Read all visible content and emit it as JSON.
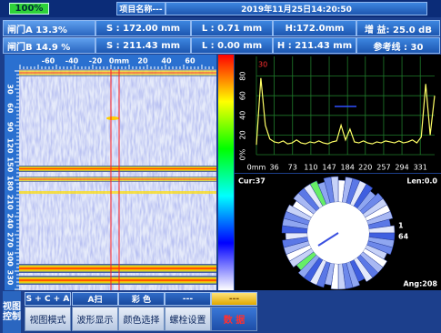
{
  "status_bar": {
    "battery": "100%",
    "project": "项目名称---",
    "datetime": "2019年11月25日14:20:50"
  },
  "gate_a": {
    "label": "闸门A 13.3%",
    "s": "S : 172.00 mm",
    "l": "L : 0.71 mm",
    "h": "H:172.0mm",
    "gain": "增 益:  25.0 dB"
  },
  "gate_b": {
    "label": "闸门B 14.9 %",
    "s": "S : 211.43 mm",
    "l": "L : 0.00 mm",
    "h": "H : 211.43 mm",
    "ref": "参考线 : 30"
  },
  "bscan": {
    "top_ruler": [
      "-60",
      "-40",
      "-20",
      "0mm",
      "20",
      "40",
      "60"
    ],
    "left_ruler": [
      "30",
      "60",
      "90",
      "120",
      "150",
      "180",
      "210",
      "240",
      "270",
      "300",
      "330"
    ]
  },
  "ascan": {
    "type": "line",
    "ref_label": "30",
    "color": "#ffff66",
    "xlim": [
      0,
      360
    ],
    "ylim": [
      0,
      100
    ],
    "xticks": [
      {
        "value": 0,
        "label": "0mm"
      },
      36,
      73,
      110,
      147,
      184,
      220,
      257,
      294,
      331
    ],
    "yticks": [
      {
        "value": 0,
        "label": "0%"
      },
      20,
      40,
      60,
      80
    ],
    "x": [
      0,
      9,
      18,
      27,
      36,
      45,
      54,
      63,
      72,
      81,
      90,
      99,
      108,
      117,
      126,
      135,
      144,
      153,
      162,
      171,
      180,
      189,
      198,
      207,
      216,
      225,
      234,
      243,
      252,
      261,
      270,
      279,
      288,
      297,
      306,
      315,
      324,
      333,
      342,
      351,
      360
    ],
    "values": [
      10,
      78,
      30,
      16,
      13,
      12,
      14,
      11,
      12,
      15,
      12,
      11,
      13,
      12,
      14,
      12,
      11,
      13,
      14,
      30,
      15,
      26,
      13,
      12,
      14,
      12,
      11,
      13,
      12,
      14,
      13,
      12,
      14,
      12,
      13,
      15,
      12,
      18,
      72,
      20,
      60
    ]
  },
  "polar": {
    "cur": "Cur:37",
    "len": "Len:0.0",
    "marker1": "1",
    "marker2": "64",
    "ang": "Ang:208"
  },
  "menu": {
    "side": "视图控制",
    "tabs": [
      "S + C + A",
      "A扫",
      "彩 色",
      "---",
      "---"
    ],
    "buttons": [
      "视图模式",
      "波形显示",
      "颜色选择",
      "螺栓设置",
      "数  据"
    ]
  }
}
